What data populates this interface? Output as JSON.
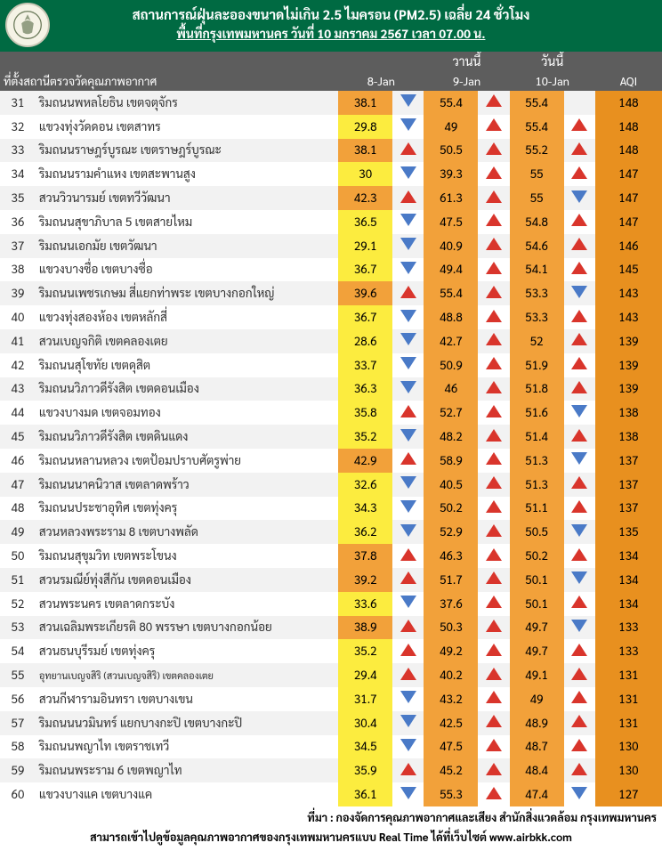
{
  "header": {
    "title": "สถานการณ์ฝุ่นละอองขนาดไม่เกิน 2.5 ไมครอน (PM2.5) เฉลี่ย 24 ชั่วโมง",
    "subtitle": "พื้นที่กรุงเทพมหานคร วันที่ 10 มกราคม 2567 เวลา 07.00 น."
  },
  "columns": {
    "station": "ที่ตั้งสถานีตรวจวัดคุณภาพอากาศ",
    "yesterday": "วานนี้",
    "today": "วันนี้",
    "d1": "8-Jan",
    "d2": "9-Jan",
    "d3": "10-Jan",
    "aqi": "AQI"
  },
  "colors": {
    "header_bg": "#006a42",
    "thead_bg": "#5d5d5d",
    "row_even": "#f2f2f2",
    "row_odd": "#ffffff",
    "yellow": "#fcec3f",
    "orange_light": "#f2a13a",
    "orange_dark": "#e8901f",
    "tri_up": "#d9352c",
    "tri_down": "#4a7ac7"
  },
  "footer": {
    "line1": "ที่มา : กองจัดการคุณภาพอากาศและเสียง สำนักสิ่งแวดล้อม กรุงเทพมหานคร",
    "line2": "สามารถเข้าไปดูข้อมูลคุณภาพอากาศของกรุงเทพมหานครแบบ Real Time ได้ที่เว็บไซต์ www.airbkk.com"
  },
  "rows": [
    {
      "n": 31,
      "name": "ริมถนนพหลโยธิน เขตจตุจักร",
      "v1": "38.1",
      "c1": "o",
      "t1": "d",
      "v2": "55.4",
      "c2": "o",
      "t2": "u",
      "v3": "55.4",
      "c3": "o",
      "t3": "",
      "aqi": "148"
    },
    {
      "n": 32,
      "name": "แขวงทุ่งวัดดอน เขตสาทร",
      "v1": "29.8",
      "c1": "y",
      "t1": "d",
      "v2": "49",
      "c2": "o",
      "t2": "u",
      "v3": "55.4",
      "c3": "o",
      "t3": "u",
      "aqi": "148"
    },
    {
      "n": 33,
      "name": "ริมถนนราษฎร์บูรณะ เขตราษฎร์บูรณะ",
      "v1": "38.1",
      "c1": "o",
      "t1": "u",
      "v2": "50.5",
      "c2": "o",
      "t2": "u",
      "v3": "55.2",
      "c3": "o",
      "t3": "u",
      "aqi": "148"
    },
    {
      "n": 34,
      "name": "ริมถนนรามคำแหง เขตสะพานสูง",
      "v1": "30",
      "c1": "y",
      "t1": "d",
      "v2": "39.3",
      "c2": "o",
      "t2": "u",
      "v3": "55",
      "c3": "o",
      "t3": "u",
      "aqi": "147"
    },
    {
      "n": 35,
      "name": "สวนวิวนารมย์ เขตทวีวัฒนา",
      "v1": "42.3",
      "c1": "o",
      "t1": "u",
      "v2": "61.3",
      "c2": "o",
      "t2": "u",
      "v3": "55",
      "c3": "o",
      "t3": "d",
      "aqi": "147"
    },
    {
      "n": 36,
      "name": "ริมถนนสุขาภิบาล 5 เขตสายไหม",
      "v1": "36.5",
      "c1": "y",
      "t1": "d",
      "v2": "47.5",
      "c2": "o",
      "t2": "u",
      "v3": "54.8",
      "c3": "o",
      "t3": "u",
      "aqi": "147"
    },
    {
      "n": 37,
      "name": "ริมถนนเอกมัย เขตวัฒนา",
      "v1": "29.1",
      "c1": "y",
      "t1": "d",
      "v2": "40.9",
      "c2": "o",
      "t2": "u",
      "v3": "54.6",
      "c3": "o",
      "t3": "u",
      "aqi": "146"
    },
    {
      "n": 38,
      "name": "แขวงบางซื่อ เขตบางซื่อ",
      "v1": "36.7",
      "c1": "y",
      "t1": "d",
      "v2": "49.4",
      "c2": "o",
      "t2": "u",
      "v3": "54.1",
      "c3": "o",
      "t3": "u",
      "aqi": "145"
    },
    {
      "n": 39,
      "name": "ริมถนนเพชรเกษม สี่แยกท่าพระ เขตบางกอกใหญ่",
      "v1": "39.6",
      "c1": "o",
      "t1": "u",
      "v2": "55.4",
      "c2": "o",
      "t2": "u",
      "v3": "53.3",
      "c3": "o",
      "t3": "d",
      "aqi": "143"
    },
    {
      "n": 40,
      "name": "แขวงทุ่งสองห้อง เขตหลักสี่",
      "v1": "36.7",
      "c1": "y",
      "t1": "d",
      "v2": "48.8",
      "c2": "o",
      "t2": "u",
      "v3": "53.3",
      "c3": "o",
      "t3": "u",
      "aqi": "143"
    },
    {
      "n": 41,
      "name": "สวนเบญจกิติ เขตคลองเตย",
      "v1": "28.6",
      "c1": "y",
      "t1": "d",
      "v2": "42.7",
      "c2": "o",
      "t2": "u",
      "v3": "52",
      "c3": "o",
      "t3": "u",
      "aqi": "139"
    },
    {
      "n": 42,
      "name": "ริมถนนสุโขทัย เขตดุสิต",
      "v1": "33.7",
      "c1": "y",
      "t1": "d",
      "v2": "50.9",
      "c2": "o",
      "t2": "u",
      "v3": "51.9",
      "c3": "o",
      "t3": "u",
      "aqi": "139"
    },
    {
      "n": 43,
      "name": "ริมถนนวิภาวดีรังสิต เขตดอนเมือง",
      "v1": "36.3",
      "c1": "y",
      "t1": "d",
      "v2": "46",
      "c2": "o",
      "t2": "u",
      "v3": "51.8",
      "c3": "o",
      "t3": "u",
      "aqi": "139"
    },
    {
      "n": 44,
      "name": "แขวงบางมด เขตจอมทอง",
      "v1": "35.8",
      "c1": "y",
      "t1": "u",
      "v2": "52.7",
      "c2": "o",
      "t2": "u",
      "v3": "51.6",
      "c3": "o",
      "t3": "d",
      "aqi": "138"
    },
    {
      "n": 45,
      "name": "ริมถนนวิภาวดีรังสิต เขตดินแดง",
      "v1": "35.2",
      "c1": "y",
      "t1": "d",
      "v2": "48.2",
      "c2": "o",
      "t2": "u",
      "v3": "51.4",
      "c3": "o",
      "t3": "u",
      "aqi": "138"
    },
    {
      "n": 46,
      "name": "ริมถนนหลานหลวง เขตป้อมปราบศัตรูพ่าย",
      "v1": "42.9",
      "c1": "o",
      "t1": "u",
      "v2": "58.9",
      "c2": "o",
      "t2": "u",
      "v3": "51.3",
      "c3": "o",
      "t3": "d",
      "aqi": "137"
    },
    {
      "n": 47,
      "name": "ริมถนนนาคนิวาส เขตลาดพร้าว",
      "v1": "32.6",
      "c1": "y",
      "t1": "d",
      "v2": "40.5",
      "c2": "o",
      "t2": "u",
      "v3": "51.3",
      "c3": "o",
      "t3": "u",
      "aqi": "137"
    },
    {
      "n": 48,
      "name": "ริมถนนประชาอุทิศ เขตทุ่งครุ",
      "v1": "34.3",
      "c1": "y",
      "t1": "d",
      "v2": "50.2",
      "c2": "o",
      "t2": "u",
      "v3": "51.1",
      "c3": "o",
      "t3": "u",
      "aqi": "137"
    },
    {
      "n": 49,
      "name": "สวนหลวงพระราม 8 เขตบางพลัด",
      "v1": "36.2",
      "c1": "y",
      "t1": "d",
      "v2": "52.9",
      "c2": "o",
      "t2": "u",
      "v3": "50.5",
      "c3": "o",
      "t3": "d",
      "aqi": "135"
    },
    {
      "n": 50,
      "name": "ริมถนนสุขุมวิท เขตพระโขนง",
      "v1": "37.8",
      "c1": "o",
      "t1": "u",
      "v2": "46.3",
      "c2": "o",
      "t2": "u",
      "v3": "50.2",
      "c3": "o",
      "t3": "u",
      "aqi": "134"
    },
    {
      "n": 51,
      "name": "สวนรมณีย์ทุ่งสีกัน เขตดอนเมือง",
      "v1": "39.2",
      "c1": "o",
      "t1": "u",
      "v2": "51.7",
      "c2": "o",
      "t2": "u",
      "v3": "50.1",
      "c3": "o",
      "t3": "d",
      "aqi": "134"
    },
    {
      "n": 52,
      "name": "สวนพระนคร เขตลาดกระบัง",
      "v1": "33.6",
      "c1": "y",
      "t1": "d",
      "v2": "37.6",
      "c2": "o",
      "t2": "u",
      "v3": "50.1",
      "c3": "o",
      "t3": "u",
      "aqi": "134"
    },
    {
      "n": 53,
      "name": "สวนเฉลิมพระเกียรติ 80 พรรษา  เขตบางกอกน้อย",
      "v1": "38.9",
      "c1": "o",
      "t1": "u",
      "v2": "50.3",
      "c2": "o",
      "t2": "u",
      "v3": "49.7",
      "c3": "o",
      "t3": "d",
      "aqi": "133"
    },
    {
      "n": 54,
      "name": "สวนธนบุรีรมย์ เขตทุ่งครุ",
      "v1": "35.2",
      "c1": "y",
      "t1": "u",
      "v2": "49.2",
      "c2": "o",
      "t2": "u",
      "v3": "49.7",
      "c3": "o",
      "t3": "u",
      "aqi": "133"
    },
    {
      "n": 55,
      "name": "อุทยานเบญจสิริ (สวนเบญจสิริ) เขตคลองเตย",
      "small": true,
      "v1": "29.4",
      "c1": "y",
      "t1": "u",
      "v2": "40.2",
      "c2": "o",
      "t2": "u",
      "v3": "49.1",
      "c3": "o",
      "t3": "u",
      "aqi": "131"
    },
    {
      "n": 56,
      "name": "สวนกีฬารามอินทรา เขตบางเขน",
      "v1": "31.7",
      "c1": "y",
      "t1": "d",
      "v2": "43.2",
      "c2": "o",
      "t2": "u",
      "v3": "49",
      "c3": "o",
      "t3": "u",
      "aqi": "131"
    },
    {
      "n": 57,
      "name": "ริมถนนนวมินทร์ แยกบางกะปิ เขตบางกะปิ",
      "v1": "30.4",
      "c1": "y",
      "t1": "d",
      "v2": "42.5",
      "c2": "o",
      "t2": "u",
      "v3": "48.9",
      "c3": "o",
      "t3": "u",
      "aqi": "131"
    },
    {
      "n": 58,
      "name": "ริมถนนพญาไท เขตราชเทวี",
      "v1": "34.5",
      "c1": "y",
      "t1": "d",
      "v2": "47.5",
      "c2": "o",
      "t2": "u",
      "v3": "48.7",
      "c3": "o",
      "t3": "u",
      "aqi": "130"
    },
    {
      "n": 59,
      "name": "ริมถนนพระราม 6 เขตพญาไท",
      "v1": "35.9",
      "c1": "y",
      "t1": "u",
      "v2": "45.2",
      "c2": "o",
      "t2": "u",
      "v3": "48.4",
      "c3": "o",
      "t3": "u",
      "aqi": "130"
    },
    {
      "n": 60,
      "name": "แขวงบางแค เขตบางแค",
      "v1": "36.1",
      "c1": "y",
      "t1": "d",
      "v2": "55.3",
      "c2": "o",
      "t2": "u",
      "v3": "47.4",
      "c3": "o",
      "t3": "d",
      "aqi": "127"
    }
  ]
}
